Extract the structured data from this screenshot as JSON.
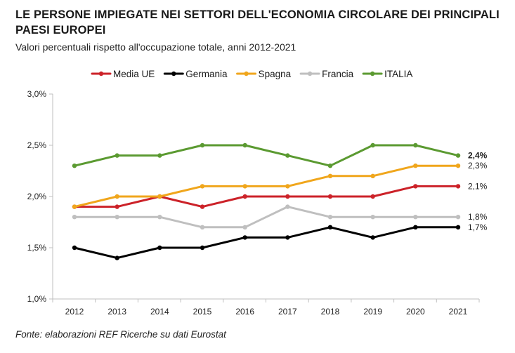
{
  "title": "LE PERSONE IMPIEGATE NEI SETTORI DELL'ECONOMIA CIRCOLARE DEI PRINCIPALI PAESI EUROPEI",
  "subtitle": "Valori percentuali rispetto all'occupazione totale, anni 2012-2021",
  "source": "Fonte: elaborazioni REF Ricerche su dati Eurostat",
  "chart_data": {
    "type": "line",
    "x": [
      "2012",
      "2013",
      "2014",
      "2015",
      "2016",
      "2017",
      "2018",
      "2019",
      "2020",
      "2021"
    ],
    "ylim": [
      1.0,
      3.0
    ],
    "yticks": [
      {
        "value": 1.0,
        "label": "1,0%"
      },
      {
        "value": 1.5,
        "label": "1,5%"
      },
      {
        "value": 2.0,
        "label": "2,0%"
      },
      {
        "value": 2.5,
        "label": "2,5%"
      },
      {
        "value": 3.0,
        "label": "3,0%"
      }
    ],
    "legend_position": "top",
    "grid": false,
    "series": [
      {
        "name": "Media UE",
        "color": "#cc2229",
        "values": [
          1.9,
          1.9,
          2.0,
          1.9,
          2.0,
          2.0,
          2.0,
          2.0,
          2.1,
          2.1
        ],
        "end_label": "2,1%",
        "bold": false
      },
      {
        "name": "Germania",
        "color": "#000000",
        "values": [
          1.5,
          1.4,
          1.5,
          1.5,
          1.6,
          1.6,
          1.7,
          1.6,
          1.7,
          1.7
        ],
        "end_label": "1,7%",
        "bold": false
      },
      {
        "name": "Spagna",
        "color": "#f0a61c",
        "values": [
          1.9,
          2.0,
          2.0,
          2.1,
          2.1,
          2.1,
          2.2,
          2.2,
          2.3,
          2.3
        ],
        "end_label": "2,3%",
        "bold": false
      },
      {
        "name": "Francia",
        "color": "#bfbfbf",
        "values": [
          1.8,
          1.8,
          1.8,
          1.7,
          1.7,
          1.9,
          1.8,
          1.8,
          1.8,
          1.8
        ],
        "end_label": "1,8%",
        "bold": false
      },
      {
        "name": "ITALIA",
        "color": "#5b9a31",
        "values": [
          2.3,
          2.4,
          2.4,
          2.5,
          2.5,
          2.4,
          2.3,
          2.5,
          2.5,
          2.4
        ],
        "end_label": "2,4%",
        "bold": true
      }
    ]
  }
}
